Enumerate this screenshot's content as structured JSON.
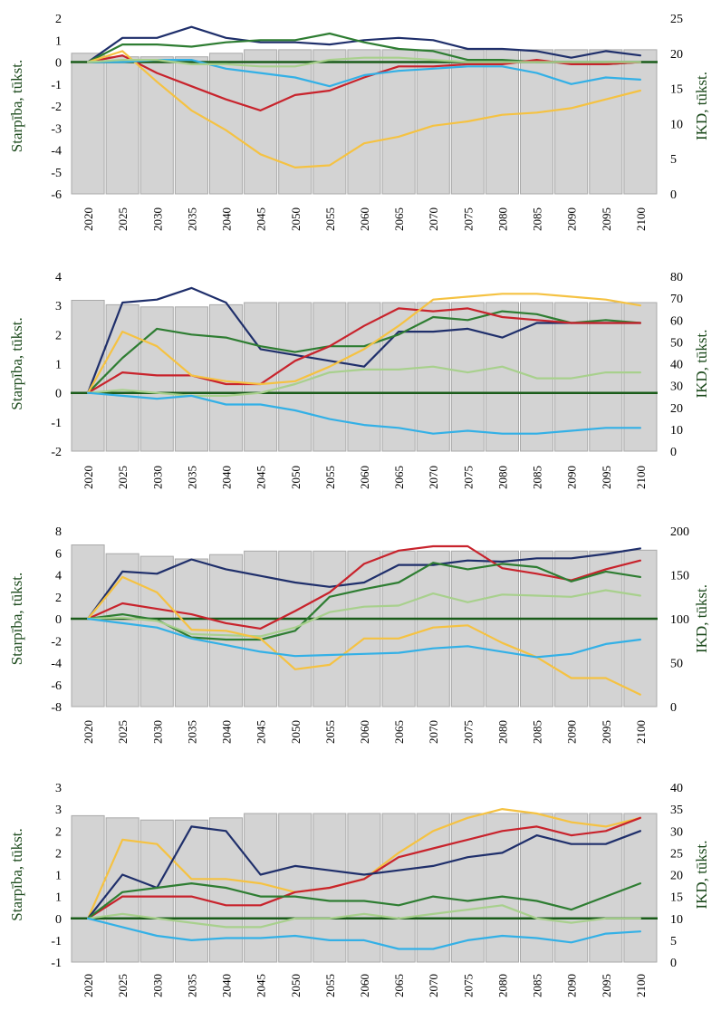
{
  "colors": {
    "bars": "#d3d3d3",
    "bar_stroke": "#a9a9a9",
    "zero_line": "#1a5c1a",
    "navy": "#1f2f6b",
    "red": "#c8232c",
    "dark_green": "#2e7d32",
    "light_green": "#a8d08d",
    "light_blue": "#33b0e6",
    "yellow": "#f5c242"
  },
  "chart_data": [
    {
      "type": "bar+line",
      "ylabel_left": "Starpība, tūkst.",
      "ylabel_right": "IKD, tūkst.",
      "ylim_left": [
        -6,
        2
      ],
      "yticks_left": [
        -6,
        -5,
        -4,
        -3,
        -2,
        -1,
        0,
        1,
        2
      ],
      "ylim_right": [
        0,
        25
      ],
      "yticks_right": [
        0,
        5,
        10,
        15,
        20,
        25
      ],
      "categories": [
        "2020",
        "2025",
        "2030",
        "2035",
        "2040",
        "2045",
        "2050",
        "2055",
        "2060",
        "2065",
        "2070",
        "2075",
        "2080",
        "2085",
        "2090",
        "2095",
        "2100"
      ],
      "bars": [
        20,
        19.5,
        19.5,
        19.5,
        20,
        20.5,
        20.5,
        20.5,
        20.5,
        20.5,
        20.5,
        20.5,
        20.5,
        20.5,
        20.5,
        20.5,
        20.5
      ],
      "series": [
        {
          "color": "navy",
          "values": [
            0,
            1.1,
            1.1,
            1.6,
            1.1,
            0.9,
            0.9,
            0.8,
            1.0,
            1.1,
            1.0,
            0.6,
            0.6,
            0.5,
            0.2,
            0.5,
            0.3
          ]
        },
        {
          "color": "dark_green",
          "values": [
            0,
            0.8,
            0.8,
            0.7,
            0.9,
            1.0,
            1.0,
            1.3,
            0.9,
            0.6,
            0.5,
            0.1,
            0.1,
            0.0,
            0.0,
            -0.1,
            0.0
          ]
        },
        {
          "color": "red",
          "values": [
            0,
            0.3,
            -0.5,
            -1.1,
            -1.7,
            -2.2,
            -1.5,
            -1.3,
            -0.7,
            -0.2,
            -0.2,
            -0.1,
            -0.1,
            0.1,
            -0.1,
            -0.1,
            0.0
          ]
        },
        {
          "color": "yellow",
          "values": [
            0,
            0.5,
            -0.9,
            -2.2,
            -3.1,
            -4.2,
            -4.8,
            -4.7,
            -3.7,
            -3.4,
            -2.9,
            -2.7,
            -2.4,
            -2.3,
            -2.1,
            -1.7,
            -1.3
          ]
        },
        {
          "color": "light_blue",
          "values": [
            0,
            0.0,
            0.1,
            0.1,
            -0.3,
            -0.5,
            -0.7,
            -1.1,
            -0.6,
            -0.4,
            -0.3,
            -0.2,
            -0.2,
            -0.5,
            -1.0,
            -0.7,
            -0.8
          ]
        },
        {
          "color": "light_green",
          "values": [
            0,
            0.1,
            0.1,
            -0.1,
            -0.1,
            -0.2,
            -0.2,
            0.1,
            0.2,
            0.2,
            0.1,
            0.0,
            0.0,
            0.0,
            0.0,
            0.0,
            0.0
          ]
        }
      ]
    },
    {
      "type": "bar+line",
      "ylabel_left": "Starpība, tūkst.",
      "ylabel_right": "IKD, tūkst.",
      "ylim_left": [
        -2,
        4
      ],
      "yticks_left": [
        -2,
        -1,
        0,
        1,
        2,
        3,
        4
      ],
      "ylim_right": [
        0,
        80
      ],
      "yticks_right": [
        0,
        10,
        20,
        30,
        40,
        50,
        60,
        70,
        80
      ],
      "categories": [
        "2020",
        "2025",
        "2030",
        "2035",
        "2040",
        "2045",
        "2050",
        "2055",
        "2060",
        "2065",
        "2070",
        "2075",
        "2080",
        "2085",
        "2090",
        "2095",
        "2100"
      ],
      "bars": [
        69,
        67,
        66,
        66,
        67,
        68,
        68,
        68,
        68,
        68,
        68,
        68,
        68,
        68,
        68,
        68,
        68
      ],
      "series": [
        {
          "color": "navy",
          "values": [
            0,
            3.1,
            3.2,
            3.6,
            3.1,
            1.5,
            1.3,
            1.1,
            0.9,
            2.1,
            2.1,
            2.2,
            1.9,
            2.4,
            2.4,
            2.4,
            2.4
          ]
        },
        {
          "color": "dark_green",
          "values": [
            0,
            1.2,
            2.2,
            2.0,
            1.9,
            1.6,
            1.4,
            1.6,
            1.6,
            2.0,
            2.6,
            2.5,
            2.8,
            2.7,
            2.4,
            2.5,
            2.4
          ]
        },
        {
          "color": "red",
          "values": [
            0,
            0.7,
            0.6,
            0.6,
            0.3,
            0.3,
            1.1,
            1.6,
            2.3,
            2.9,
            2.8,
            2.9,
            2.6,
            2.5,
            2.4,
            2.4,
            2.4
          ]
        },
        {
          "color": "yellow",
          "values": [
            0,
            2.1,
            1.6,
            0.6,
            0.4,
            0.3,
            0.4,
            0.9,
            1.5,
            2.3,
            3.2,
            3.3,
            3.4,
            3.4,
            3.3,
            3.2,
            3.0
          ]
        },
        {
          "color": "light_green",
          "values": [
            0,
            0.1,
            0.0,
            -0.1,
            -0.1,
            0.0,
            0.3,
            0.7,
            0.8,
            0.8,
            0.9,
            0.7,
            0.9,
            0.5,
            0.5,
            0.7,
            0.7
          ]
        },
        {
          "color": "light_blue",
          "values": [
            0,
            -0.1,
            -0.2,
            -0.1,
            -0.4,
            -0.4,
            -0.6,
            -0.9,
            -1.1,
            -1.2,
            -1.4,
            -1.3,
            -1.4,
            -1.4,
            -1.3,
            -1.2,
            -1.2
          ]
        }
      ]
    },
    {
      "type": "bar+line",
      "ylabel_left": "Starpība, tūkst.",
      "ylabel_right": "IKD, tūkst.",
      "ylim_left": [
        -8,
        8
      ],
      "yticks_left": [
        -8,
        -6,
        -4,
        -2,
        0,
        2,
        4,
        6,
        8
      ],
      "ylim_right": [
        0,
        200
      ],
      "yticks_right": [
        0,
        50,
        100,
        150,
        200
      ],
      "categories": [
        "2020",
        "2025",
        "2030",
        "2035",
        "2040",
        "2045",
        "2050",
        "2055",
        "2060",
        "2065",
        "2070",
        "2075",
        "2080",
        "2085",
        "2090",
        "2095",
        "2100"
      ],
      "bars": [
        184,
        174,
        171,
        168,
        173,
        177,
        177,
        177,
        177,
        177,
        177,
        177,
        177,
        177,
        177,
        177,
        178
      ],
      "series": [
        {
          "color": "navy",
          "values": [
            0,
            4.3,
            4.1,
            5.4,
            4.5,
            3.9,
            3.3,
            2.9,
            3.3,
            4.9,
            4.9,
            5.3,
            5.2,
            5.5,
            5.5,
            5.9,
            6.4
          ]
        },
        {
          "color": "red",
          "values": [
            0,
            1.4,
            0.9,
            0.4,
            -0.4,
            -0.9,
            0.7,
            2.4,
            5.0,
            6.2,
            6.6,
            6.6,
            4.6,
            4.1,
            3.5,
            4.5,
            5.3
          ]
        },
        {
          "color": "dark_green",
          "values": [
            0,
            0.4,
            -0.1,
            -1.7,
            -1.9,
            -1.9,
            -1.1,
            2.0,
            2.7,
            3.3,
            5.1,
            4.5,
            5.0,
            4.7,
            3.4,
            4.3,
            3.8
          ]
        },
        {
          "color": "light_green",
          "values": [
            0,
            0.1,
            -0.2,
            -1.4,
            -1.5,
            -1.6,
            -0.8,
            0.6,
            1.1,
            1.2,
            2.3,
            1.5,
            2.2,
            2.1,
            2.0,
            2.6,
            2.1
          ]
        },
        {
          "color": "yellow",
          "values": [
            0,
            3.8,
            2.4,
            -1.0,
            -1.1,
            -1.8,
            -4.6,
            -4.2,
            -1.8,
            -1.8,
            -0.8,
            -0.6,
            -2.2,
            -3.5,
            -5.4,
            -5.4,
            -6.9
          ]
        },
        {
          "color": "light_blue",
          "values": [
            0,
            -0.4,
            -0.8,
            -1.8,
            -2.4,
            -3.0,
            -3.4,
            -3.3,
            -3.2,
            -3.1,
            -2.7,
            -2.5,
            -3.0,
            -3.5,
            -3.2,
            -2.3,
            -1.9
          ]
        }
      ]
    },
    {
      "type": "bar+line",
      "ylabel_left": "Starpība, tūkst.",
      "ylabel_right": "IKD, tūkst.",
      "ylim_left": [
        -1,
        3
      ],
      "yticks_left": [
        -1,
        -0.5,
        0,
        0.5,
        1,
        1.5,
        2,
        2.5,
        3
      ],
      "yticklabels_left": [
        "-1",
        "-1",
        "0",
        "1",
        "1",
        "2",
        "2",
        "3",
        "3"
      ],
      "ylim_right": [
        0,
        40
      ],
      "yticks_right": [
        0,
        5,
        10,
        15,
        20,
        25,
        30,
        35,
        40
      ],
      "categories": [
        "2020",
        "2025",
        "2030",
        "2035",
        "2040",
        "2045",
        "2050",
        "2055",
        "2060",
        "2065",
        "2070",
        "2075",
        "2080",
        "2085",
        "2090",
        "2095",
        "2100"
      ],
      "bars": [
        33.5,
        33,
        32.5,
        32.5,
        33,
        34,
        34,
        34,
        34,
        34,
        34,
        34,
        34,
        34,
        34,
        34,
        34
      ],
      "series": [
        {
          "color": "yellow",
          "values": [
            0,
            1.8,
            1.7,
            0.9,
            0.9,
            0.8,
            0.6,
            0.7,
            0.9,
            1.5,
            2.0,
            2.3,
            2.5,
            2.4,
            2.2,
            2.1,
            2.3
          ]
        },
        {
          "color": "red",
          "values": [
            0,
            0.5,
            0.5,
            0.5,
            0.3,
            0.3,
            0.6,
            0.7,
            0.9,
            1.4,
            1.6,
            1.8,
            2.0,
            2.1,
            1.9,
            2.0,
            2.3
          ]
        },
        {
          "color": "navy",
          "values": [
            0,
            1.0,
            0.7,
            2.1,
            2.0,
            1.0,
            1.2,
            1.1,
            1.0,
            1.1,
            1.2,
            1.4,
            1.5,
            1.9,
            1.7,
            1.7,
            2.0
          ]
        },
        {
          "color": "dark_green",
          "values": [
            0,
            0.6,
            0.7,
            0.8,
            0.7,
            0.5,
            0.5,
            0.4,
            0.4,
            0.3,
            0.5,
            0.4,
            0.5,
            0.4,
            0.2,
            0.5,
            0.8
          ]
        },
        {
          "color": "light_green",
          "values": [
            0,
            0.1,
            0.0,
            -0.1,
            -0.2,
            -0.2,
            0.0,
            0.0,
            0.1,
            0.0,
            0.1,
            0.2,
            0.3,
            0.0,
            -0.1,
            0.0,
            0.0
          ]
        },
        {
          "color": "light_blue",
          "values": [
            0,
            -0.2,
            -0.4,
            -0.5,
            -0.45,
            -0.45,
            -0.4,
            -0.5,
            -0.5,
            -0.7,
            -0.7,
            -0.5,
            -0.4,
            -0.45,
            -0.55,
            -0.35,
            -0.3
          ]
        }
      ]
    }
  ]
}
